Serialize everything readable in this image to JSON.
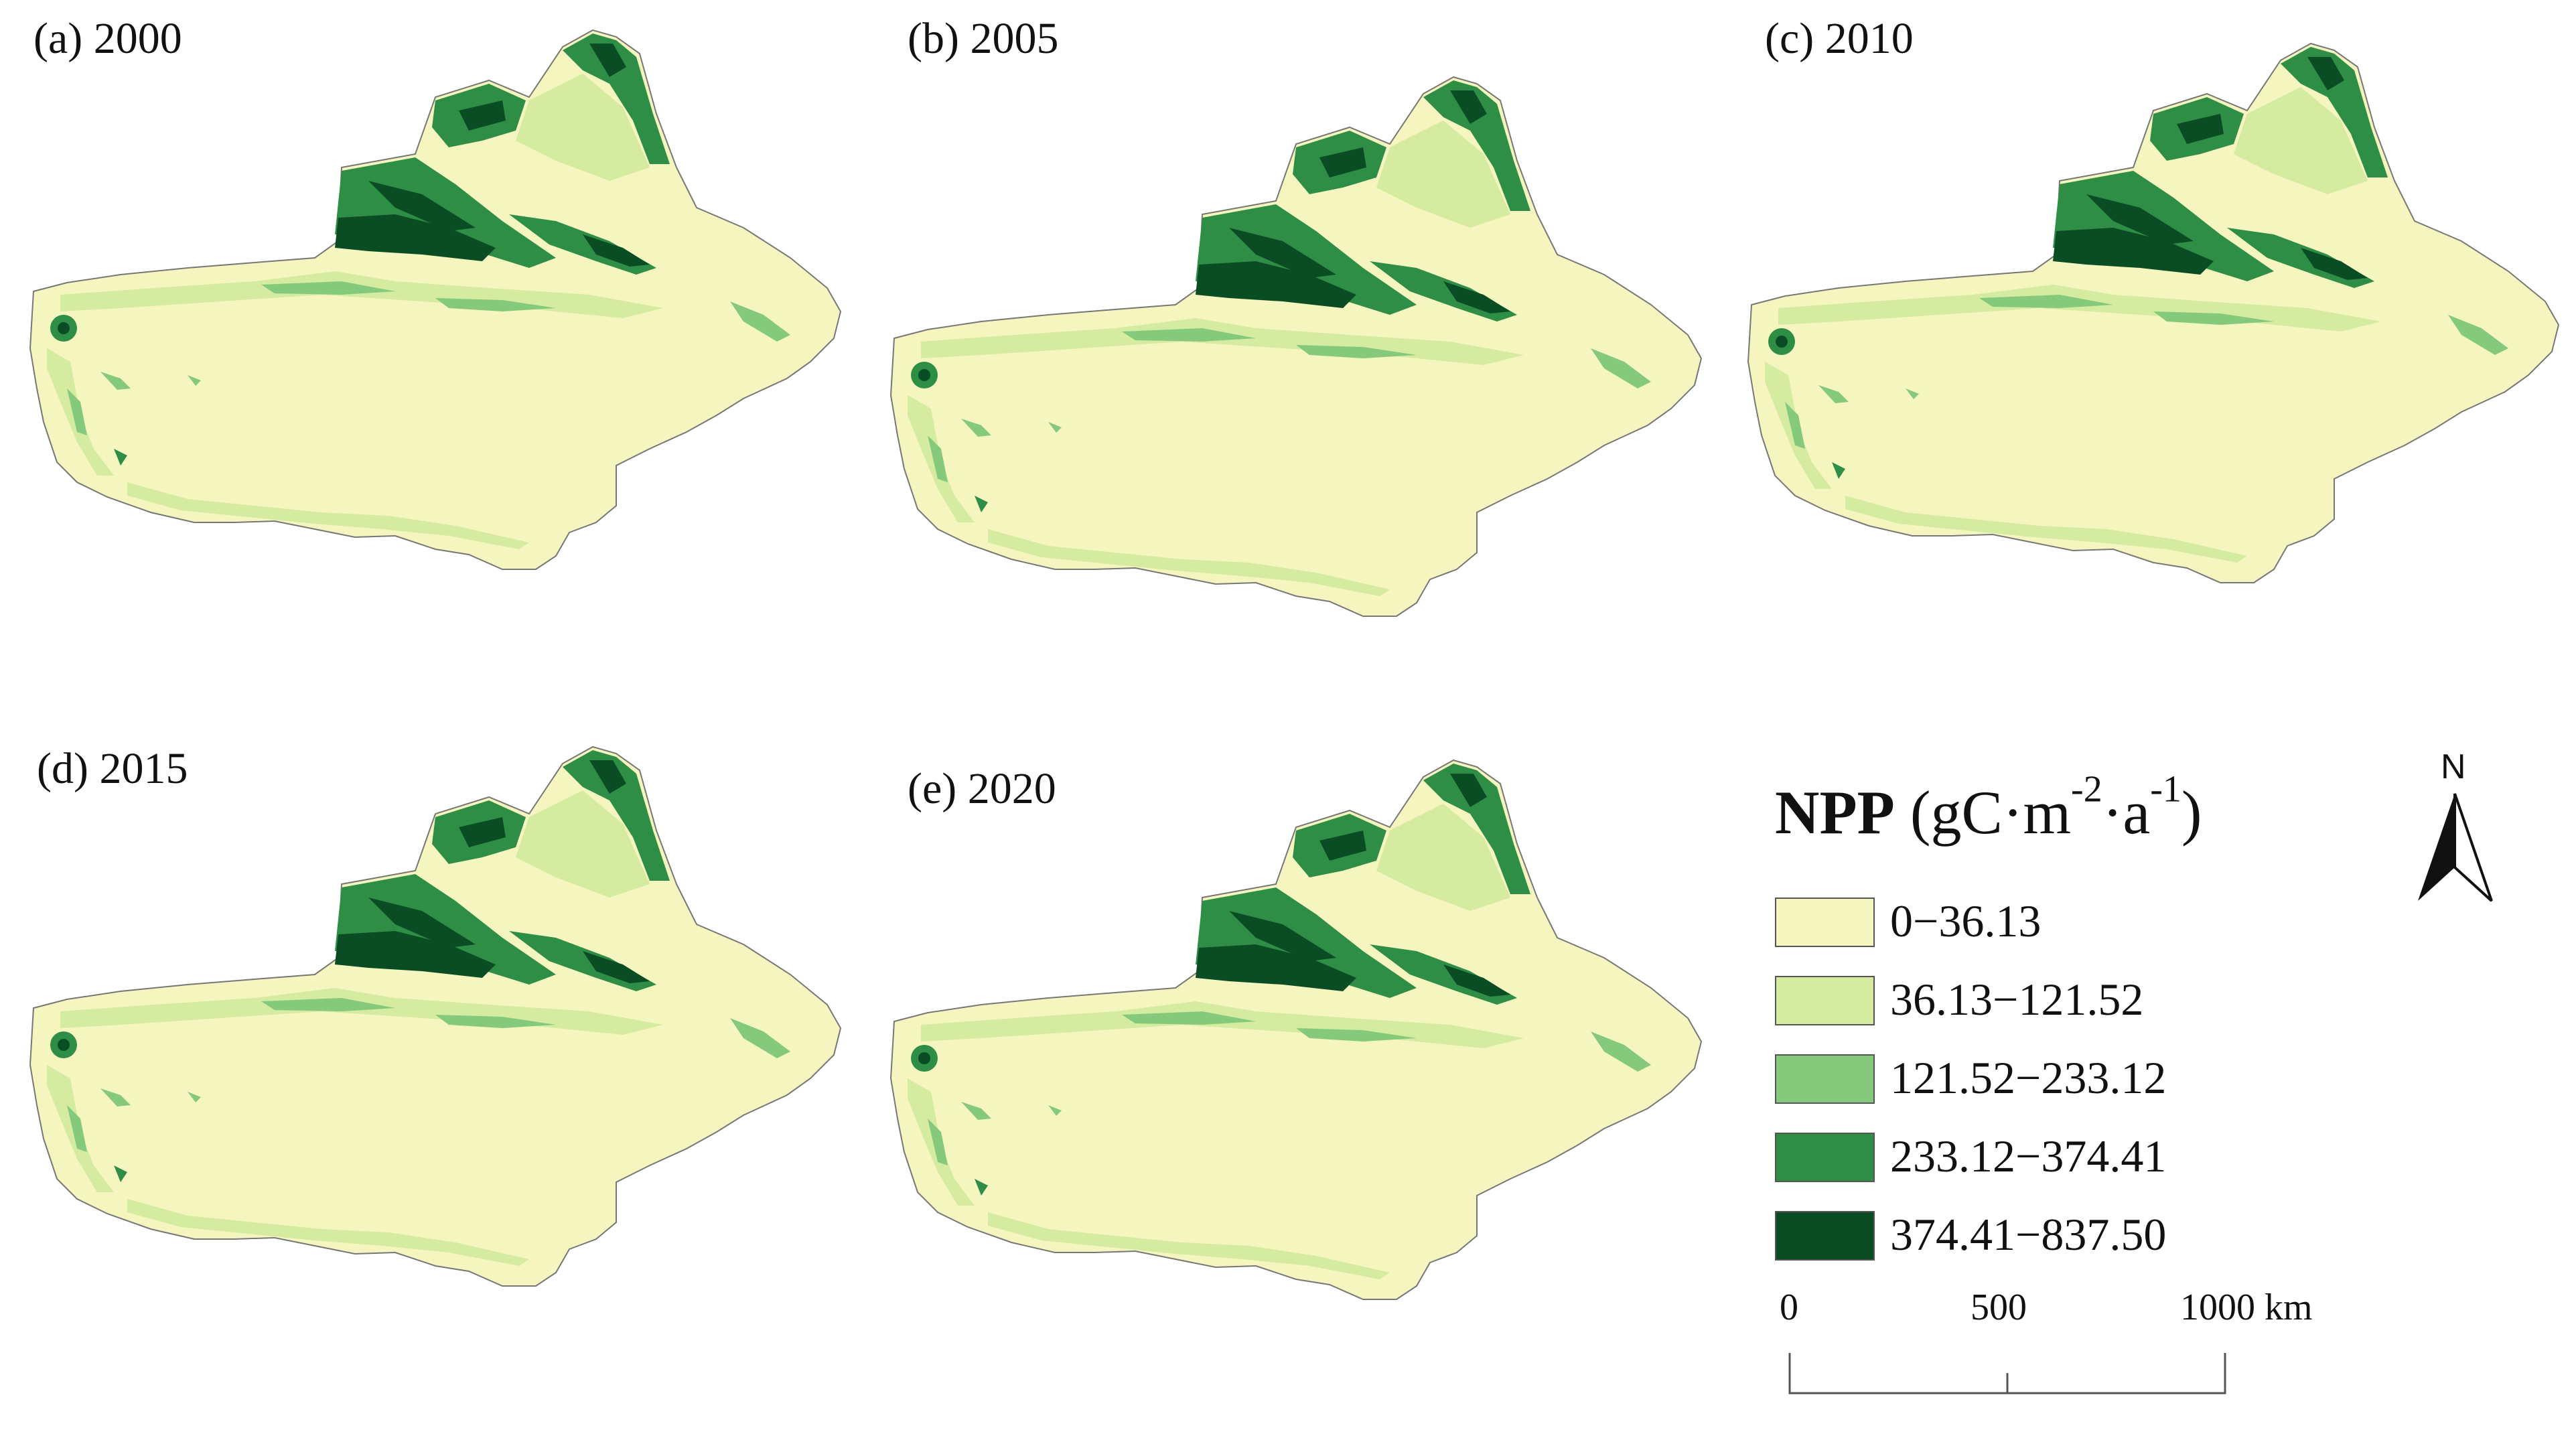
{
  "panels": [
    {
      "label": "(a) 2000"
    },
    {
      "label": "(b) 2005"
    },
    {
      "label": "(c) 2010"
    },
    {
      "label": "(d) 2015"
    },
    {
      "label": "(e) 2020"
    }
  ],
  "legend": {
    "title_bold": "NPP",
    "title_unit_base": "(gC·m",
    "title_exp1": "-2",
    "title_mid": "·a",
    "title_exp2": "-1",
    "title_close": ")",
    "classes": [
      {
        "range": "0−36.13",
        "color": "#f5f5c0"
      },
      {
        "range": "36.13−121.52",
        "color": "#d4eba0"
      },
      {
        "range": "121.52−233.12",
        "color": "#85ca7c"
      },
      {
        "range": "233.12−374.41",
        "color": "#2f8e45"
      },
      {
        "range": "374.41−837.50",
        "color": "#0a4d24"
      }
    ]
  },
  "scale_bar": {
    "labels": [
      "0",
      "500",
      "1000 km"
    ]
  },
  "north_arrow": {
    "label": "N"
  }
}
